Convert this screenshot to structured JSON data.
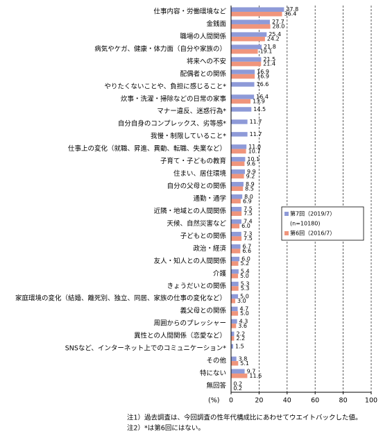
{
  "chart_data": {
    "type": "bar",
    "orientation": "horizontal",
    "categories": [
      "仕事内容・労働環境など",
      "金銭面",
      "職場の人間関係",
      "病気やケガ、健康・体力面（自分や家族の）",
      "将来への不安",
      "配偶者との関係",
      "やりたくないことや、負担に感じること*",
      "炊事・洗濯・掃除などの日常の家事",
      "マナー違反、迷惑行為*",
      "自分自身のコンプレックス、劣等感*",
      "我慢・制限していること*",
      "仕事上の変化（就職、昇進、異動、転職、失業など）",
      "子育て・子どもの教育",
      "住まい、居住環境",
      "自分の父母との関係",
      "通勤・通学",
      "近隣・地域との人間関係",
      "天候、自然災害など",
      "子どもとの関係",
      "政治・経済",
      "友人・知人との人間関係",
      "介護",
      "きょうだいとの関係",
      "家庭環境の変化（結婚、離死別、独立、同居、家族の仕事の変化など）",
      "義父母との関係",
      "周囲からのプレッシャー",
      "異性との人間関係（恋愛など）",
      "SNSなど、インターネット上でのコミュニケーション*",
      "その他",
      "特にない",
      "無回答"
    ],
    "series": [
      {
        "name": "第7回（2019/7）",
        "legend_note": "(n=10180)",
        "color": "#8e9ad8",
        "values": [
          37.8,
          27.7,
          25.4,
          21.8,
          21.5,
          16.9,
          16.6,
          16.4,
          14.5,
          11.7,
          11.7,
          11.0,
          10.1,
          9.9,
          8.9,
          8.0,
          7.5,
          7.4,
          7.3,
          6.7,
          6.0,
          5.4,
          5.3,
          5.0,
          4.7,
          4.3,
          2.2,
          1.5,
          3.8,
          9.7,
          0.2
        ],
        "value_labels": [
          "37.8",
          "27.7",
          "25.4",
          "21.8",
          "21.5",
          "16.9",
          "16.6",
          "16.4",
          "14.5",
          "11.7",
          "11.7",
          "11.0",
          "10.1",
          "9.9",
          "8.9",
          "8.0",
          "7.5",
          "7.4",
          "7.3",
          "6.7",
          "6.0",
          "5.4",
          "5.3",
          "5.0",
          "4.7",
          "4.3",
          "2.2",
          "1.5",
          "3.8",
          "9.7",
          "0.2"
        ]
      },
      {
        "name": "第6回（2016/7）",
        "color": "#f0957c",
        "values": [
          36.4,
          28.0,
          24.2,
          19.1,
          21.4,
          16.9,
          null,
          13.9,
          null,
          null,
          null,
          10.7,
          9.6,
          9.2,
          8.5,
          6.9,
          7.5,
          6.0,
          7.5,
          6.6,
          5.2,
          5.0,
          5.3,
          3.0,
          5.0,
          3.6,
          2.2,
          null,
          5.1,
          11.6,
          0.2
        ],
        "value_labels": [
          "36.4",
          "28.0",
          "24.2",
          "19.1",
          "21.4",
          "16.9",
          null,
          "13.9",
          null,
          null,
          null,
          "10.7",
          "9.6",
          "9.2",
          "8.5",
          "6.9",
          "7.5",
          "6.0",
          "7.5",
          "6.6",
          "5.2",
          "5.0",
          "5.3",
          "3.0",
          "5.0",
          "3.6",
          "2.2",
          null,
          "5.1",
          "11.6",
          "0.2"
        ]
      }
    ],
    "xlim": [
      0,
      100
    ],
    "xticks": [
      0,
      20,
      40,
      60,
      80,
      100
    ],
    "grid": true,
    "x_axis_label": "(%)",
    "notes": [
      "注1）過去調査は、今回調査の性年代構成比にあわせてウエイトバックした値。",
      "注2）*は第6回にはない。"
    ]
  }
}
